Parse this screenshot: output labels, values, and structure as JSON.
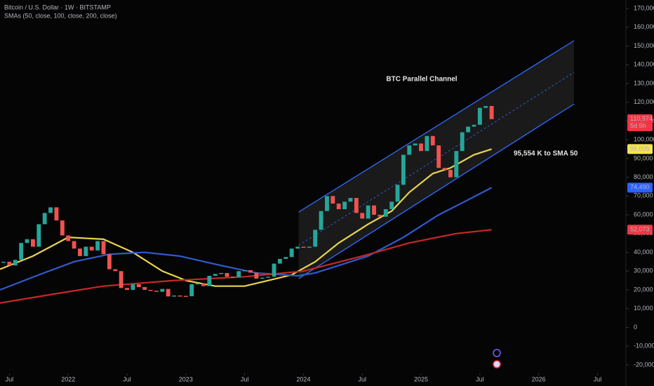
{
  "chart_data": {
    "type": "candlestick",
    "title": "Bitcoin / U.S. Dollar · 1W · BITSTAMP",
    "subtitle": "SMAs (50, close, 100, close, 200, close)",
    "xlim": [
      2021.42,
      2026.73
    ],
    "xticks": [
      {
        "value": 2021.5,
        "label": "Jul"
      },
      2022,
      {
        "value": 2022.5,
        "label": "Jul"
      },
      2023,
      {
        "value": 2023.5,
        "label": "Jul"
      },
      2024,
      {
        "value": 2024.5,
        "label": "Jul"
      },
      2025,
      {
        "value": 2025.5,
        "label": "Jul"
      },
      2026,
      {
        "value": 2026.5,
        "label": "Jul"
      }
    ],
    "ylim": [
      -26000,
      173000
    ],
    "yticks": [
      {
        "value": -20000,
        "label": "-20,000"
      },
      {
        "value": -10000,
        "label": "-10,000"
      },
      0,
      {
        "value": 10000,
        "label": "10,000"
      },
      {
        "value": 20000,
        "label": "20,000"
      },
      {
        "value": 30000,
        "label": "30,000"
      },
      {
        "value": 40000,
        "label": "40,000"
      },
      {
        "value": 50000,
        "label": "50,000"
      },
      {
        "value": 60000,
        "label": "60,000"
      },
      {
        "value": 70000,
        "label": "70,000"
      },
      {
        "value": 80000,
        "label": "80,000"
      },
      {
        "value": 90000,
        "label": "90,000"
      },
      {
        "value": 100000,
        "label": "100,000"
      },
      {
        "value": 110000,
        "label": "110,000"
      },
      {
        "value": 120000,
        "label": "120,000"
      },
      {
        "value": 130000,
        "label": "130,000"
      },
      {
        "value": 140000,
        "label": "140,000"
      },
      {
        "value": 150000,
        "label": "150,000"
      },
      {
        "value": 160000,
        "label": "160,000"
      },
      {
        "value": 170000,
        "label": "170,000"
      }
    ],
    "grid": false,
    "candles": {
      "up_color": "#26a69a",
      "down_color": "#ef5350",
      "x": [
        2021.45,
        2021.5,
        2021.55,
        2021.6,
        2021.65,
        2021.7,
        2021.75,
        2021.8,
        2021.85,
        2021.9,
        2021.95,
        2022.0,
        2022.05,
        2022.1,
        2022.15,
        2022.2,
        2022.25,
        2022.3,
        2022.35,
        2022.4,
        2022.45,
        2022.5,
        2022.55,
        2022.6,
        2022.65,
        2022.7,
        2022.75,
        2022.8,
        2022.85,
        2022.9,
        2022.95,
        2023.0,
        2023.05,
        2023.1,
        2023.15,
        2023.2,
        2023.25,
        2023.3,
        2023.35,
        2023.4,
        2023.45,
        2023.5,
        2023.55,
        2023.6,
        2023.65,
        2023.7,
        2023.75,
        2023.8,
        2023.85,
        2023.9,
        2023.95,
        2024.0,
        2024.05,
        2024.1,
        2024.15,
        2024.2,
        2024.25,
        2024.3,
        2024.35,
        2024.4,
        2024.45,
        2024.5,
        2024.55,
        2024.6,
        2024.65,
        2024.7,
        2024.75,
        2024.8,
        2024.85,
        2024.9,
        2024.95,
        2025.0,
        2025.05,
        2025.1,
        2025.15,
        2025.2,
        2025.25,
        2025.3,
        2025.35,
        2025.4,
        2025.45,
        2025.5,
        2025.55,
        2025.6
      ],
      "close": [
        35000,
        33000,
        36000,
        45000,
        47000,
        43000,
        55000,
        61000,
        64000,
        57000,
        49000,
        46000,
        42000,
        38000,
        43000,
        41000,
        46000,
        39000,
        31000,
        30000,
        21000,
        20000,
        23000,
        21500,
        20000,
        19500,
        19000,
        20500,
        16500,
        17000,
        16800,
        16600,
        23000,
        23500,
        22000,
        27500,
        28500,
        29000,
        27000,
        26800,
        30000,
        30500,
        29200,
        26000,
        26500,
        27000,
        34000,
        36500,
        37500,
        42000,
        43000,
        42500,
        43000,
        52000,
        62000,
        70000,
        66000,
        63000,
        67000,
        69000,
        61000,
        58000,
        65000,
        60000,
        59000,
        63000,
        67000,
        76000,
        92000,
        97000,
        98000,
        94000,
        102000,
        97000,
        85000,
        84000,
        80000,
        94000,
        104000,
        107000,
        108000,
        117000,
        118000,
        111000
      ]
    },
    "sma_lines": [
      {
        "color": "#e8d44d",
        "x": [
          2021.42,
          2021.7,
          2022.0,
          2022.3,
          2022.55,
          2022.8,
          2023.0,
          2023.25,
          2023.5,
          2023.7,
          2023.9,
          2024.1,
          2024.3,
          2024.55,
          2024.75,
          2024.9,
          2025.1,
          2025.25,
          2025.45,
          2025.6
        ],
        "values": [
          31000,
          38000,
          48000,
          47000,
          40000,
          30000,
          25000,
          22000,
          22000,
          25000,
          28000,
          35000,
          45000,
          55000,
          62000,
          72000,
          82000,
          85000,
          92000,
          95035
        ]
      },
      {
        "color": "#2f5bd0",
        "x": [
          2021.42,
          2021.75,
          2022.05,
          2022.35,
          2022.65,
          2022.95,
          2023.3,
          2023.6,
          2023.95,
          2024.1,
          2024.55,
          2024.85,
          2025.15,
          2025.4,
          2025.6
        ],
        "values": [
          20000,
          28000,
          35000,
          39000,
          40000,
          38000,
          33000,
          29000,
          27500,
          29000,
          38000,
          48000,
          60000,
          68000,
          74490
        ]
      },
      {
        "color": "#c62828",
        "x": [
          2021.42,
          2021.9,
          2022.3,
          2022.9,
          2023.5,
          2024.0,
          2024.5,
          2024.9,
          2025.3,
          2025.6
        ],
        "values": [
          13000,
          18000,
          22000,
          25000,
          27000,
          30000,
          38000,
          45000,
          50000,
          52073
        ]
      }
    ],
    "channel": {
      "color": "#2f6bff",
      "x": [
        2023.96,
        2026.3
      ],
      "upper": [
        61500,
        152800
      ],
      "lower": [
        26000,
        119000
      ]
    },
    "price_tags": [
      {
        "value": 110974,
        "label": "110,974",
        "color": "#f23645",
        "text_color": "#ffffff"
      },
      {
        "value": 95035,
        "label": "95,035",
        "color": "#f5e642",
        "text_color": "#000000"
      },
      {
        "value": 74490,
        "label": "74,490",
        "color": "#2962ff",
        "text_color": "#ffffff"
      },
      {
        "value": 52073,
        "label": "52,073",
        "color": "#f23645",
        "text_color": "#ffffff"
      }
    ],
    "countdown": "5d 5h",
    "annotations": [
      "BTC Parallel Channel",
      "95,554 K to SMA 50"
    ]
  }
}
